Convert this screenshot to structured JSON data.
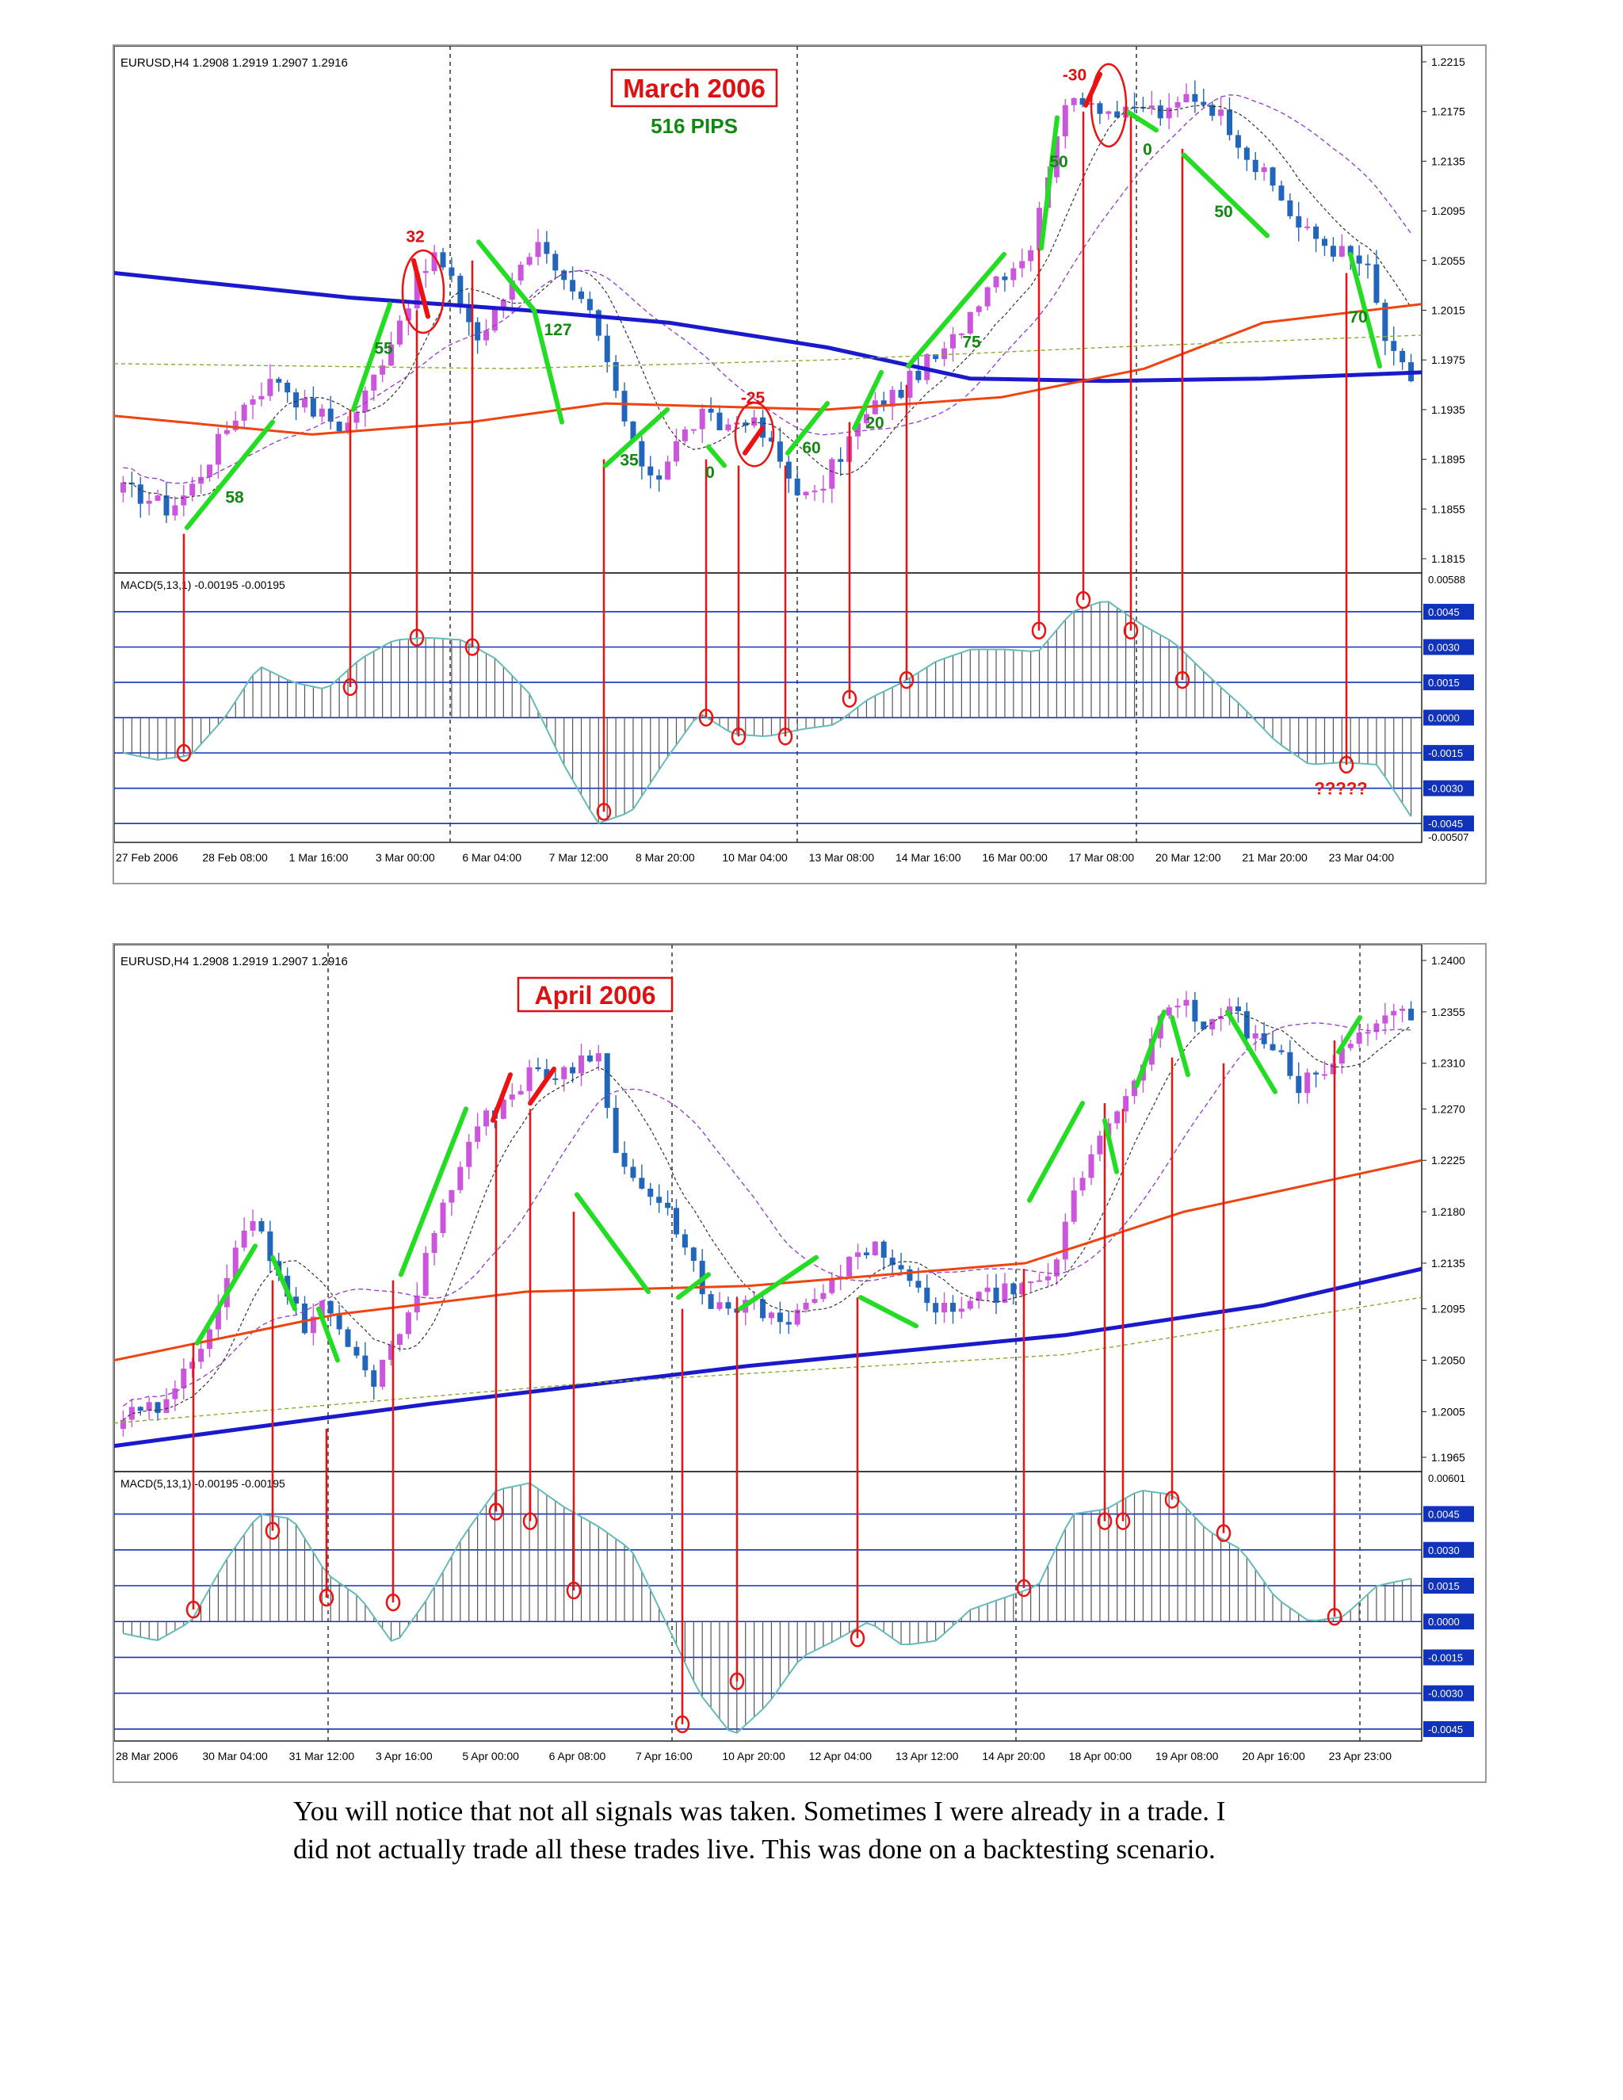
{
  "charts": [
    {
      "id": "march",
      "header": "EURUSD,H4  1.2908 1.2919 1.2907 1.2916",
      "title": "March 2006",
      "subtitle": "516 PIPS",
      "macd_label": "MACD(5,13,1) -0.00195 -0.00195",
      "price_ticks": [
        "1.2215",
        "1.2175",
        "1.2135",
        "1.2095",
        "1.2055",
        "1.2015",
        "1.1975",
        "1.1935",
        "1.1895",
        "1.1855",
        "1.1815"
      ],
      "macd_ticks": [
        "0.00588",
        "0.0045",
        "0.0030",
        "0.0015",
        "0.0000",
        "-0.0015",
        "-0.0030",
        "-0.0045",
        "-0.00507"
      ],
      "time_labels": [
        "27 Feb 2006",
        "28 Feb 08:00",
        "1 Mar 16:00",
        "3 Mar 00:00",
        "6 Mar 04:00",
        "7 Mar 12:00",
        "8 Mar 20:00",
        "10 Mar 04:00",
        "13 Mar 08:00",
        "14 Mar 16:00",
        "16 Mar 00:00",
        "17 Mar 08:00",
        "20 Mar 12:00",
        "21 Mar 20:00",
        "23 Mar 04:00"
      ],
      "pip_labels": [
        {
          "text": "58",
          "color": "#118811"
        },
        {
          "text": "55",
          "color": "#118811"
        },
        {
          "text": "32",
          "color": "#dd1111"
        },
        {
          "text": "127",
          "color": "#118811"
        },
        {
          "text": "35",
          "color": "#118811"
        },
        {
          "text": "0",
          "color": "#118811"
        },
        {
          "text": "-25",
          "color": "#dd1111"
        },
        {
          "text": "60",
          "color": "#118811"
        },
        {
          "text": "20",
          "color": "#118811"
        },
        {
          "text": "75",
          "color": "#118811"
        },
        {
          "text": "50",
          "color": "#118811"
        },
        {
          "text": "-30",
          "color": "#dd1111"
        },
        {
          "text": "0",
          "color": "#118811"
        },
        {
          "text": "50",
          "color": "#118811"
        },
        {
          "text": "70",
          "color": "#118811"
        }
      ],
      "question_marks": "?????"
    },
    {
      "id": "april",
      "header": "EURUSD,H4  1.2908 1.2919 1.2907 1.2916",
      "title": "April 2006",
      "macd_label": "MACD(5,13,1) -0.00195 -0.00195",
      "price_ticks": [
        "1.2400",
        "1.2355",
        "1.2310",
        "1.2270",
        "1.2225",
        "1.2180",
        "1.2135",
        "1.2095",
        "1.2050",
        "1.2005",
        "1.1965"
      ],
      "macd_ticks": [
        "0.00601",
        "0.0045",
        "0.0030",
        "0.0015",
        "0.0000",
        "-0.0015",
        "-0.0030",
        "-0.0045"
      ],
      "time_labels": [
        "28 Mar 2006",
        "30 Mar 04:00",
        "31 Mar 12:00",
        "3 Apr 16:00",
        "5 Apr 00:00",
        "6 Apr 08:00",
        "7 Apr 16:00",
        "10 Apr 20:00",
        "12 Apr 04:00",
        "13 Apr 12:00",
        "14 Apr 20:00",
        "18 Apr 00:00",
        "19 Apr 08:00",
        "20 Apr 16:00",
        "23 Apr 23:00"
      ]
    }
  ],
  "colors": {
    "bull": "#cc55dd",
    "bear": "#2266bb",
    "sma_blue": "#1a1acc",
    "ema_red": "#ee4411",
    "envelope": "#9944cc",
    "signal_green": "#22dd22",
    "signal_red": "#ee1111",
    "macd_line": "#66bbbb",
    "level_line": "#1133bb",
    "tick_box": "#1133bb"
  },
  "caption": [
    "You will notice that not all signals was taken. Sometimes I were already in a trade. I",
    "did not actually trade all these trades live. This was done on a backtesting scenario."
  ],
  "chart_data": [
    {
      "type": "candlestick",
      "title": "March 2006",
      "subtitle": "516 PIPS",
      "symbol": "EURUSD,H4",
      "ylim": [
        1.1815,
        1.2215
      ],
      "close_path": [
        1.187,
        1.1865,
        1.1855,
        1.187,
        1.19,
        1.193,
        1.195,
        1.196,
        1.194,
        1.193,
        1.192,
        1.195,
        1.199,
        1.203,
        1.206,
        1.203,
        1.199,
        1.202,
        1.206,
        1.207,
        1.203,
        1.201,
        1.196,
        1.19,
        1.188,
        1.191,
        1.193,
        1.192,
        1.193,
        1.191,
        1.188,
        1.186,
        1.189,
        1.192,
        1.194,
        1.195,
        1.197,
        1.198,
        1.201,
        1.204,
        1.205,
        1.207,
        1.216,
        1.219,
        1.218,
        1.217,
        1.218,
        1.217,
        1.219,
        1.218,
        1.216,
        1.213,
        1.211,
        1.208,
        1.207,
        1.206,
        1.205,
        1.198,
        1.196
      ],
      "signals": [
        58,
        55,
        32,
        127,
        35,
        0,
        -25,
        60,
        20,
        75,
        50,
        -30,
        0,
        50,
        70
      ]
    },
    {
      "type": "candlestick",
      "title": "April 2006",
      "symbol": "EURUSD,H4",
      "ylim": [
        1.1965,
        1.24
      ],
      "close_path": [
        1.2,
        1.2005,
        1.201,
        1.205,
        1.209,
        1.215,
        1.217,
        1.212,
        1.208,
        1.21,
        1.206,
        1.203,
        1.207,
        1.211,
        1.218,
        1.223,
        1.226,
        1.228,
        1.23,
        1.23,
        1.231,
        1.232,
        1.222,
        1.22,
        1.218,
        1.214,
        1.21,
        1.209,
        1.21,
        1.208,
        1.209,
        1.211,
        1.213,
        1.215,
        1.214,
        1.211,
        1.209,
        1.21,
        1.2105,
        1.211,
        1.211,
        1.212,
        1.219,
        1.224,
        1.227,
        1.231,
        1.235,
        1.236,
        1.234,
        1.236,
        1.233,
        1.232,
        1.229,
        1.23,
        1.232,
        1.234,
        1.236,
        1.235
      ]
    }
  ]
}
